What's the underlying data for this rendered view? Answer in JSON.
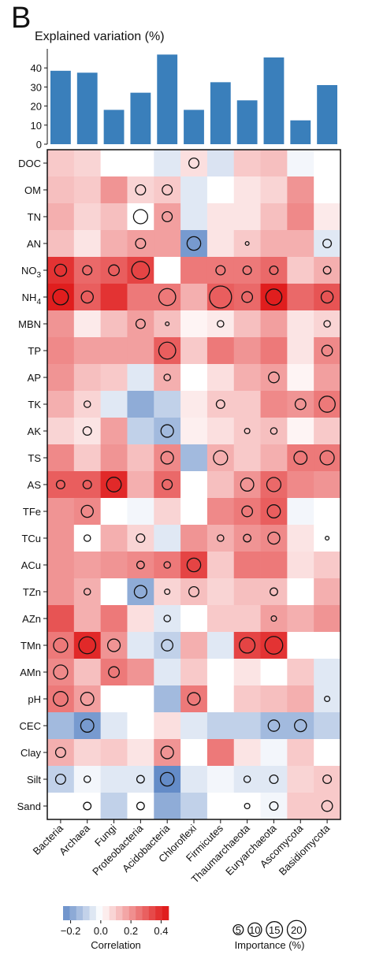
{
  "panel_letter": "B",
  "chart_data": [
    {
      "type": "bar",
      "title": "Explained variation (%)",
      "color": "#3a7fbb",
      "ylim": [
        0,
        50
      ],
      "yticks": [
        0,
        10,
        20,
        30,
        40
      ],
      "categories": [
        "Bacteria",
        "Archaea",
        "Fungi",
        "Proteobacteria",
        "Acidobacteria",
        "Chloroflexi",
        "Firmicutes",
        "Thaumarchaeota",
        "Euryarchaeota",
        "Ascomycota",
        "Basidiomycota"
      ],
      "values": [
        38.5,
        37.5,
        18,
        27,
        47,
        18,
        32.5,
        23,
        45.5,
        12.5,
        31
      ]
    },
    {
      "type": "heatmap",
      "columns": [
        "Bacteria",
        "Archaea",
        "Fungi",
        "Proteobacteria",
        "Acidobacteria",
        "Chloroflexi",
        "Firmicutes",
        "Thaumarchaeota",
        "Euryarchaeota",
        "Ascomycota",
        "Basidiomycota"
      ],
      "rows": [
        {
          "label": "DOC"
        },
        {
          "label": "OM"
        },
        {
          "label": "TN"
        },
        {
          "label": "AN"
        },
        {
          "label": "NO3",
          "base": "NO",
          "sub": "3"
        },
        {
          "label": "NH4",
          "base": "NH",
          "sub": "4"
        },
        {
          "label": "MBN"
        },
        {
          "label": "TP"
        },
        {
          "label": "AP"
        },
        {
          "label": "TK"
        },
        {
          "label": "AK"
        },
        {
          "label": "TS"
        },
        {
          "label": "AS"
        },
        {
          "label": "TFe"
        },
        {
          "label": "TCu"
        },
        {
          "label": "ACu"
        },
        {
          "label": "TZn"
        },
        {
          "label": "AZn"
        },
        {
          "label": "TMn"
        },
        {
          "label": "AMn"
        },
        {
          "label": "pH"
        },
        {
          "label": "CEC"
        },
        {
          "label": "Clay"
        },
        {
          "label": "Silt"
        },
        {
          "label": "Sand"
        }
      ],
      "correlation": [
        [
          0.1,
          0.08,
          0.0,
          0.0,
          -0.05,
          0.06,
          -0.06,
          0.1,
          0.12,
          -0.02,
          0.0
        ],
        [
          0.12,
          0.1,
          0.2,
          0.08,
          0.1,
          -0.05,
          0.0,
          0.05,
          0.08,
          0.2,
          0.0
        ],
        [
          0.15,
          0.08,
          0.12,
          0.0,
          0.18,
          -0.05,
          0.05,
          0.05,
          0.12,
          0.22,
          0.04
        ],
        [
          0.12,
          0.05,
          0.15,
          0.18,
          0.18,
          -0.22,
          0.05,
          0.1,
          0.15,
          0.15,
          -0.05
        ],
        [
          0.38,
          0.28,
          0.3,
          0.35,
          0.0,
          0.25,
          0.25,
          0.25,
          0.28,
          0.1,
          0.15
        ],
        [
          0.42,
          0.3,
          0.38,
          0.25,
          0.25,
          0.15,
          0.3,
          0.28,
          0.42,
          0.28,
          0.32
        ],
        [
          0.2,
          0.04,
          0.12,
          0.18,
          0.12,
          0.02,
          0.04,
          0.12,
          0.18,
          0.05,
          0.08
        ],
        [
          0.22,
          0.18,
          0.18,
          0.18,
          0.3,
          0.1,
          0.25,
          0.2,
          0.25,
          0.05,
          0.22
        ],
        [
          0.2,
          0.12,
          0.1,
          -0.05,
          0.15,
          0.0,
          0.06,
          0.15,
          0.18,
          0.02,
          0.18
        ],
        [
          0.15,
          0.08,
          -0.05,
          -0.18,
          -0.1,
          0.04,
          0.1,
          0.1,
          0.22,
          0.2,
          0.25
        ],
        [
          0.08,
          0.05,
          0.18,
          -0.1,
          -0.15,
          0.03,
          0.06,
          0.1,
          0.12,
          0.02,
          0.1
        ],
        [
          0.22,
          0.1,
          0.2,
          0.12,
          0.22,
          -0.15,
          0.15,
          0.1,
          0.15,
          0.25,
          0.25
        ],
        [
          0.3,
          0.3,
          0.4,
          0.15,
          0.28,
          0.0,
          0.12,
          0.2,
          0.28,
          0.22,
          0.2
        ],
        [
          0.2,
          0.22,
          0.0,
          -0.02,
          0.08,
          0.0,
          0.22,
          0.25,
          0.3,
          -0.02,
          0.0
        ],
        [
          0.2,
          0.0,
          0.15,
          0.08,
          -0.05,
          0.2,
          0.15,
          0.2,
          0.22,
          0.05,
          0.0
        ],
        [
          0.2,
          0.18,
          0.2,
          0.22,
          0.25,
          0.35,
          0.1,
          0.25,
          0.25,
          0.06,
          0.1
        ],
        [
          0.2,
          0.15,
          0.0,
          -0.18,
          0.08,
          0.12,
          0.08,
          0.12,
          0.12,
          0.0,
          0.15
        ],
        [
          0.32,
          0.15,
          0.25,
          0.06,
          -0.05,
          0.0,
          0.1,
          0.1,
          0.18,
          0.15,
          0.2
        ],
        [
          0.25,
          0.4,
          0.2,
          -0.05,
          -0.1,
          0.15,
          -0.05,
          0.35,
          0.38,
          0.0,
          0.0
        ],
        [
          0.22,
          0.12,
          0.25,
          0.2,
          -0.05,
          0.1,
          0.0,
          0.05,
          0.0,
          0.1,
          -0.05
        ],
        [
          0.25,
          0.18,
          0.0,
          0.0,
          -0.15,
          0.25,
          0.0,
          0.1,
          0.12,
          0.15,
          -0.05
        ],
        [
          -0.15,
          -0.22,
          -0.05,
          0.0,
          0.06,
          -0.05,
          -0.1,
          -0.1,
          -0.15,
          -0.15,
          -0.1
        ],
        [
          0.15,
          0.08,
          0.1,
          0.05,
          0.2,
          0.0,
          0.25,
          0.05,
          -0.02,
          0.1,
          0.0
        ],
        [
          -0.1,
          -0.02,
          -0.05,
          -0.05,
          -0.25,
          -0.05,
          -0.02,
          -0.05,
          -0.05,
          0.08,
          0.1
        ],
        [
          0.0,
          0.0,
          -0.1,
          0.0,
          -0.18,
          -0.1,
          0.0,
          0.0,
          -0.02,
          0.1,
          0.1
        ]
      ],
      "importance": [
        [
          0,
          0,
          0,
          0,
          0,
          7,
          0,
          0,
          0,
          0,
          0
        ],
        [
          0,
          0,
          0,
          7,
          7,
          0,
          0,
          0,
          0,
          0,
          0
        ],
        [
          0,
          0,
          0,
          14,
          7,
          0,
          0,
          0,
          0,
          0,
          0
        ],
        [
          0,
          0,
          0,
          7,
          0,
          13,
          0,
          1,
          0,
          0,
          5
        ],
        [
          10,
          6,
          8,
          22,
          0,
          0,
          6,
          5,
          5,
          0,
          4
        ],
        [
          17,
          10,
          0,
          0,
          20,
          0,
          34,
          8,
          18,
          0,
          10
        ],
        [
          0,
          0,
          0,
          6,
          1,
          0,
          3,
          0,
          0,
          0,
          3
        ],
        [
          0,
          0,
          0,
          0,
          20,
          0,
          0,
          0,
          0,
          0,
          8
        ],
        [
          0,
          0,
          0,
          0,
          3,
          0,
          0,
          0,
          8,
          0,
          0
        ],
        [
          0,
          3,
          0,
          0,
          0,
          0,
          5,
          0,
          0,
          8,
          18
        ],
        [
          0,
          5,
          0,
          0,
          11,
          0,
          0,
          2,
          3,
          0,
          0
        ],
        [
          0,
          0,
          0,
          0,
          11,
          0,
          14,
          0,
          0,
          12,
          14
        ],
        [
          5,
          5,
          15,
          0,
          7,
          0,
          0,
          12,
          14,
          0,
          0
        ],
        [
          0,
          10,
          0,
          0,
          0,
          0,
          0,
          8,
          12,
          0,
          0
        ],
        [
          0,
          3,
          0,
          5,
          0,
          0,
          3,
          4,
          10,
          0,
          1
        ],
        [
          0,
          0,
          0,
          4,
          3,
          13,
          0,
          0,
          0,
          0,
          0
        ],
        [
          0,
          3,
          0,
          11,
          2,
          7,
          0,
          0,
          4,
          0,
          0
        ],
        [
          0,
          0,
          0,
          0,
          3,
          0,
          0,
          0,
          2,
          0,
          0
        ],
        [
          14,
          20,
          11,
          0,
          9,
          0,
          0,
          17,
          22,
          0,
          0
        ],
        [
          14,
          0,
          8,
          0,
          0,
          0,
          0,
          0,
          0,
          0,
          0
        ],
        [
          15,
          12,
          0,
          0,
          0,
          11,
          0,
          0,
          0,
          0,
          2
        ],
        [
          0,
          12,
          0,
          0,
          0,
          0,
          0,
          0,
          9,
          10,
          0
        ],
        [
          7,
          0,
          0,
          0,
          11,
          0,
          0,
          0,
          0,
          0,
          0
        ],
        [
          7,
          3,
          0,
          4,
          13,
          0,
          0,
          3,
          5,
          0,
          5
        ],
        [
          0,
          4,
          0,
          4,
          0,
          0,
          0,
          2,
          5,
          0,
          8
        ]
      ],
      "colorbar": {
        "title": "Correlation",
        "range": [
          -0.25,
          0.45
        ],
        "ticks": [
          -0.2,
          0.0,
          0.2,
          0.4
        ],
        "tick_labels": [
          "−0.2",
          "0.0",
          "0.2",
          "0.4"
        ]
      },
      "size_legend": {
        "title": "Importance (%)",
        "values": [
          5,
          10,
          15,
          20
        ],
        "labels": [
          "5",
          "10",
          "15",
          "20"
        ]
      }
    }
  ]
}
